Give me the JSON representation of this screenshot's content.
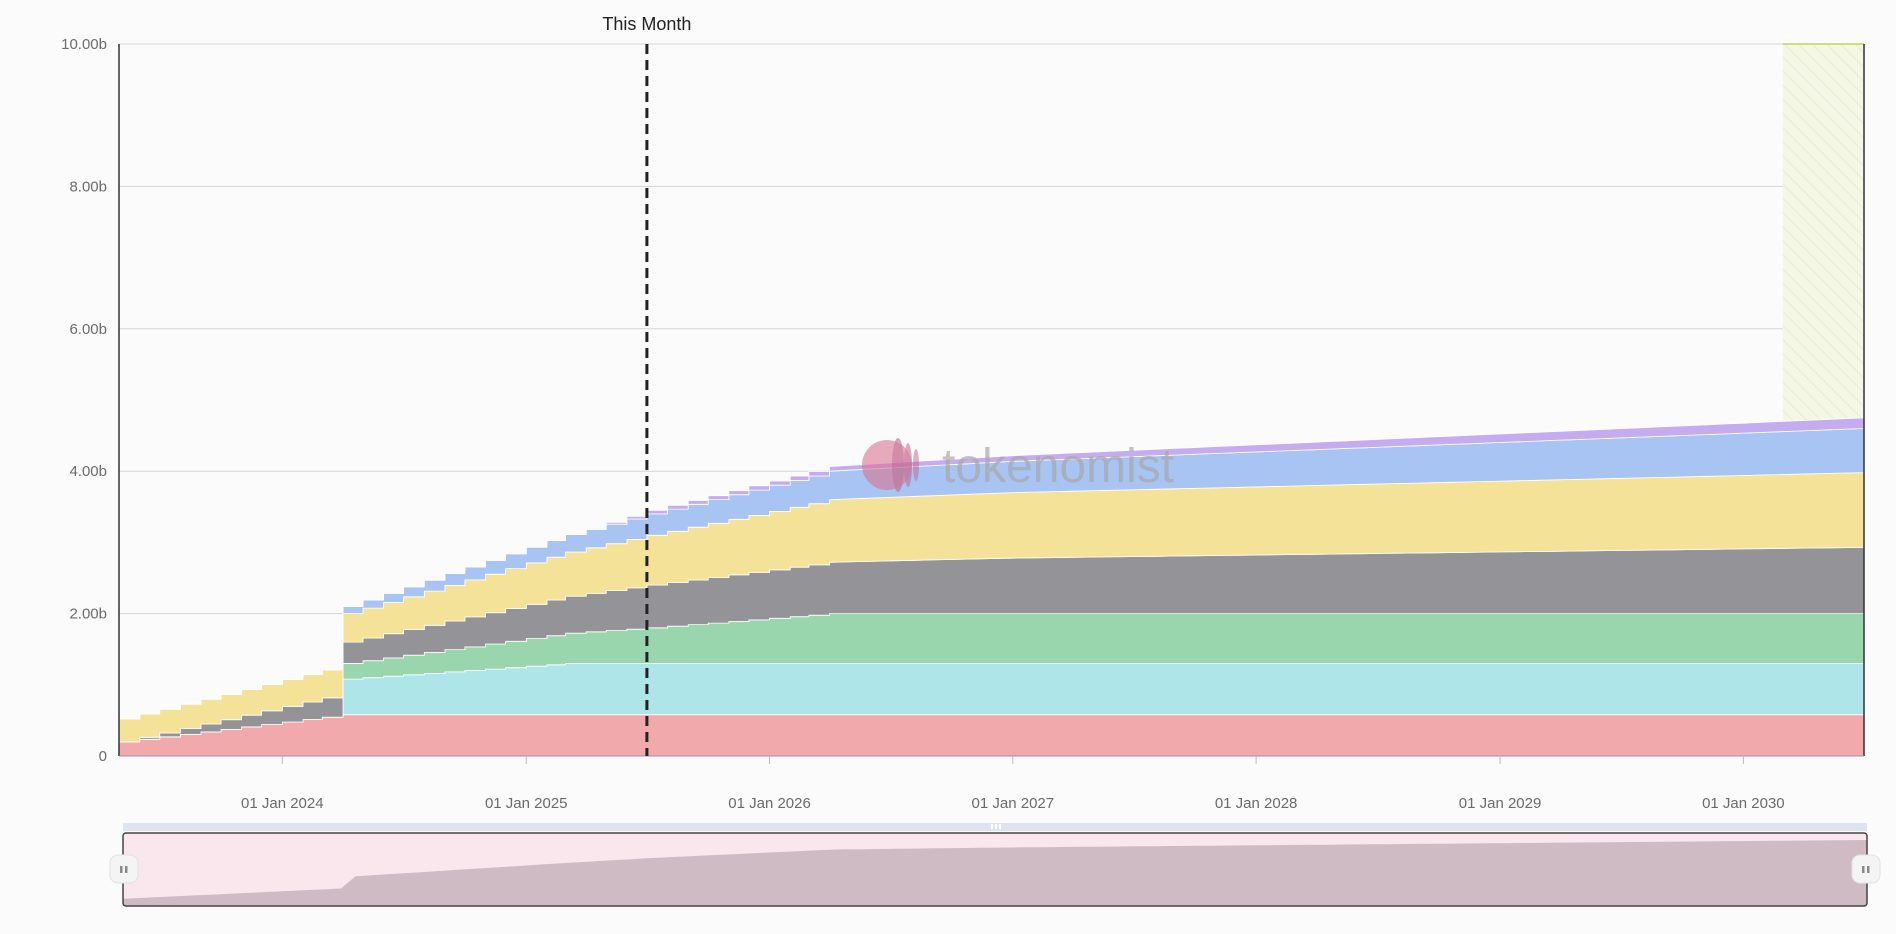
{
  "chart_data": {
    "type": "area",
    "title": "",
    "xlabel": "",
    "ylabel": "",
    "x_range": [
      "2023-05-01",
      "2030-07-01"
    ],
    "ylim": [
      0,
      10000000000
    ],
    "y_ticks": [
      {
        "value": 0,
        "label": "0"
      },
      {
        "value": 2000000000,
        "label": "2.00b"
      },
      {
        "value": 4000000000,
        "label": "4.00b"
      },
      {
        "value": 6000000000,
        "label": "6.00b"
      },
      {
        "value": 8000000000,
        "label": "8.00b"
      },
      {
        "value": 10000000000,
        "label": "10.00b"
      }
    ],
    "x_ticks": [
      {
        "date": "2024-01-01",
        "label": "01 Jan 2024"
      },
      {
        "date": "2025-01-01",
        "label": "01 Jan 2025"
      },
      {
        "date": "2026-01-01",
        "label": "01 Jan 2026"
      },
      {
        "date": "2027-01-01",
        "label": "01 Jan 2027"
      },
      {
        "date": "2028-01-01",
        "label": "01 Jan 2028"
      },
      {
        "date": "2029-01-01",
        "label": "01 Jan 2029"
      },
      {
        "date": "2030-01-01",
        "label": "01 Jan 2030"
      }
    ],
    "grid": true,
    "stacked": true,
    "series": [
      {
        "color": "#f2a9ab",
        "points": [
          [
            "2023-05-01",
            0.2
          ],
          [
            "2024-04-01",
            0.58
          ],
          [
            "2030-07-01",
            0.58
          ]
        ]
      },
      {
        "color": "#aee5e8",
        "points": [
          [
            "2023-05-01",
            0
          ],
          [
            "2024-03-31",
            0
          ],
          [
            "2024-04-01",
            0.5
          ],
          [
            "2025-03-01",
            0.72
          ],
          [
            "2030-07-01",
            0.72
          ]
        ]
      },
      {
        "color": "#99d6ae",
        "points": [
          [
            "2023-05-01",
            0
          ],
          [
            "2024-03-31",
            0
          ],
          [
            "2024-04-01",
            0.22
          ],
          [
            "2025-07-01",
            0.5
          ],
          [
            "2026-04-01",
            0.7
          ],
          [
            "2030-07-01",
            0.7
          ]
        ]
      },
      {
        "color": "#939398",
        "points": [
          [
            "2023-05-01",
            0
          ],
          [
            "2024-04-01",
            0.3
          ],
          [
            "2025-07-01",
            0.6
          ],
          [
            "2026-04-01",
            0.72
          ],
          [
            "2027-01-01",
            0.78
          ],
          [
            "2030-07-01",
            0.93
          ]
        ]
      },
      {
        "color": "#f5e299",
        "points": [
          [
            "2023-05-01",
            0.32
          ],
          [
            "2024-04-01",
            0.4
          ],
          [
            "2025-07-01",
            0.7
          ],
          [
            "2026-04-01",
            0.88
          ],
          [
            "2027-01-01",
            0.92
          ],
          [
            "2030-07-01",
            1.05
          ]
        ]
      },
      {
        "color": "#a8c4f2",
        "points": [
          [
            "2023-05-01",
            0
          ],
          [
            "2024-03-31",
            0
          ],
          [
            "2024-04-01",
            0.1
          ],
          [
            "2025-07-01",
            0.3
          ],
          [
            "2026-04-01",
            0.4
          ],
          [
            "2030-07-01",
            0.62
          ]
        ]
      },
      {
        "color": "#c5acf0",
        "points": [
          [
            "2023-05-01",
            0
          ],
          [
            "2025-03-01",
            0
          ],
          [
            "2025-07-01",
            0.05
          ],
          [
            "2030-07-01",
            0.15
          ]
        ]
      }
    ],
    "monthly_steps_until": "2026-04-01",
    "annotations": [
      {
        "type": "vertical-line",
        "date": "2025-07-01",
        "label": "This Month",
        "style": "dashed",
        "color": "#222222"
      }
    ],
    "highlight_region": {
      "from": "2030-03-01",
      "to": "2030-07-01",
      "color": "#eef3d9"
    }
  },
  "watermark": {
    "text": "tokenomist"
  },
  "navigator": {
    "selected_fraction": [
      0,
      1
    ]
  }
}
